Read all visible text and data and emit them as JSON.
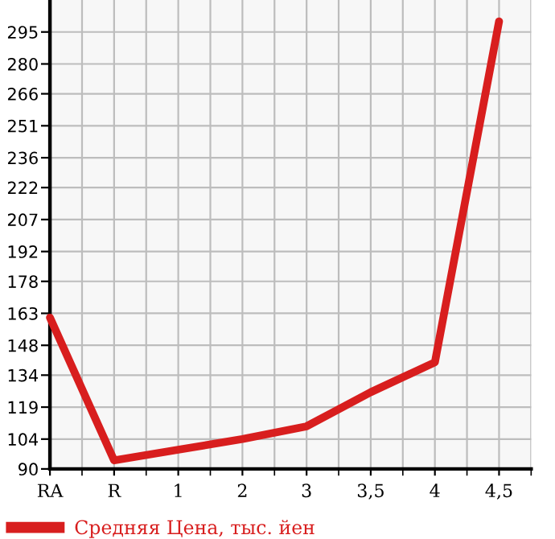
{
  "chart_data": {
    "type": "line",
    "categories": [
      "RA",
      "R",
      "1",
      "2",
      "3",
      "3,5",
      "4",
      "4,5"
    ],
    "series": [
      {
        "name": "Средняя Цена, тыс. йен",
        "color": "#d81e1e",
        "values": [
          161,
          94,
          99,
          104,
          110,
          126,
          140,
          300
        ]
      }
    ],
    "ylim": [
      90,
      310
    ],
    "yticks": [
      90,
      104,
      119,
      134,
      148,
      163,
      178,
      192,
      207,
      222,
      236,
      251,
      266,
      280,
      295
    ],
    "grid": true,
    "legend": "bottom left",
    "marker": "none",
    "line_style": "solid"
  }
}
